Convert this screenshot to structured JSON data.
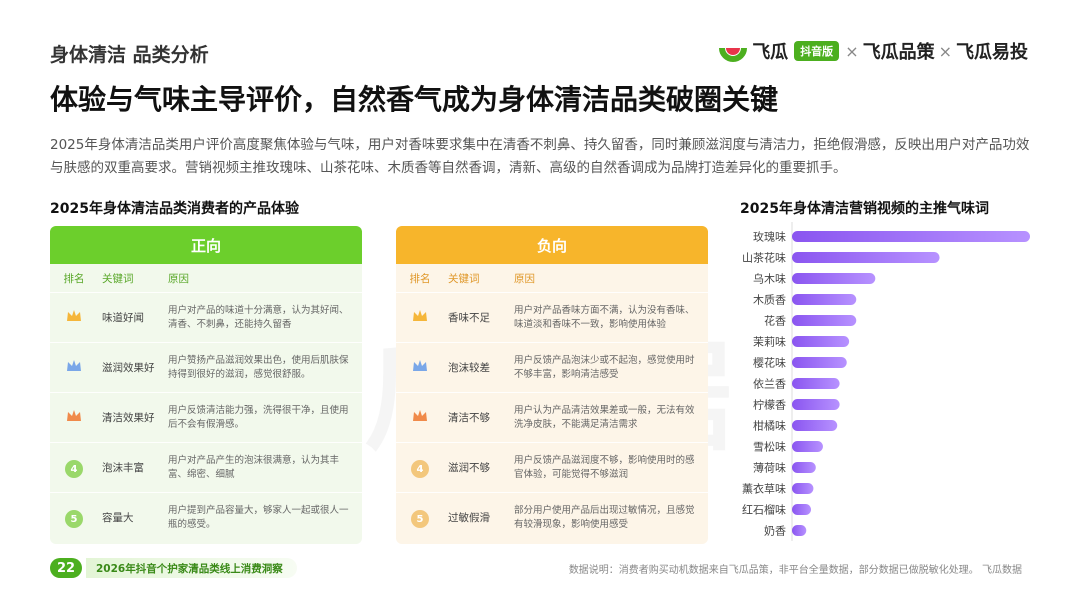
{
  "header": {
    "section_tag": "身体清洁 品类分析",
    "brand": {
      "name1": "飞瓜",
      "pill": "抖音版",
      "x1": "×",
      "name2": "飞瓜品策",
      "x2": "×",
      "name3": "飞瓜易投",
      "accent": "#4caf1f"
    }
  },
  "title": "体验与气味主导评价，自然香气成为身体清洁品类破圈关键",
  "description": "2025年身体清洁品类用户评价高度聚焦体验与气味，用户对香味要求集中在清香不刺鼻、持久留香，同时兼顾滋润度与清洁力，拒绝假滑感，反映出用户对产品功效与肤感的双重高要求。营销视频主推玫瑰味、山茶花味、木质香等自然香调，清新、高级的自然香调成为品牌打造差异化的重要抓手。",
  "left_title": "2025年身体清洁品类消费者的产品体验",
  "right_title": "2025年身体清洁营销视频的主推气味词",
  "columns": {
    "rank": "排名",
    "keyword": "关键词",
    "reason": "原因"
  },
  "positive": {
    "label": "正向",
    "color": "#6ccf2c",
    "rows": [
      {
        "rank": "1",
        "icon": "gold-crown-icon",
        "keyword": "味道好闻",
        "reason": "用户对产品的味道十分满意，认为其好闻、清香、不刺鼻，还能持久留香"
      },
      {
        "rank": "2",
        "icon": "silver-crown-icon",
        "keyword": "滋润效果好",
        "reason": "用户赞扬产品滋润效果出色，使用后肌肤保持得到很好的滋润，感觉很舒服。"
      },
      {
        "rank": "3",
        "icon": "bronze-crown-icon",
        "keyword": "清洁效果好",
        "reason": "用户反馈清洁能力强，洗得很干净，且使用后不会有假滑感。"
      },
      {
        "rank": "4",
        "icon": "",
        "keyword": "泡沫丰富",
        "reason": "用户对产品产生的泡沫很满意，认为其丰富、绵密、细腻"
      },
      {
        "rank": "5",
        "icon": "",
        "keyword": "容量大",
        "reason": "用户提到产品容量大，够家人一起或很人一瓶的感受。"
      }
    ]
  },
  "negative": {
    "label": "负向",
    "color": "#f7b52b",
    "rows": [
      {
        "rank": "1",
        "icon": "gold-crown-icon",
        "keyword": "香味不足",
        "reason": "用户对产品香味方面不满，认为没有香味、味道淡和香味不一致，影响使用体验"
      },
      {
        "rank": "2",
        "icon": "silver-crown-icon",
        "keyword": "泡沫较差",
        "reason": "用户反馈产品泡沫少或不起泡，感觉使用时不够丰富，影响清洁感受"
      },
      {
        "rank": "3",
        "icon": "bronze-crown-icon",
        "keyword": "清洁不够",
        "reason": "用户认为产品清洁效果差或一般，无法有效洗净皮肤，不能满足清洁需求"
      },
      {
        "rank": "4",
        "icon": "",
        "keyword": "滋润不够",
        "reason": "用户反馈产品滋润度不够，影响使用时的感官体验，可能觉得不够滋润"
      },
      {
        "rank": "5",
        "icon": "",
        "keyword": "过敏假滑",
        "reason": "部分用户使用产品后出现过敏情况，且感觉有较滑现象，影响使用感受"
      }
    ]
  },
  "watermark": "飞瓜数据",
  "chart_data": {
    "type": "bar",
    "orientation": "horizontal",
    "title": "2025年身体清洁营销视频的主推气味词",
    "categories": [
      "玫瑰味",
      "山茶花味",
      "乌木味",
      "木质香",
      "花香",
      "茉莉味",
      "樱花味",
      "依兰香",
      "柠檬香",
      "柑橘味",
      "雪松味",
      "薄荷味",
      "薰衣草味",
      "红石榴味",
      "奶香"
    ],
    "values": [
      100,
      62,
      35,
      27,
      27,
      24,
      23,
      20,
      20,
      19,
      13,
      10,
      9,
      8,
      6
    ],
    "unit": "relative",
    "bar_color": "#8a55f0",
    "bar_color_light": "#b792ff",
    "xlabel": "",
    "ylabel": "",
    "grid": false
  },
  "footer": {
    "page": "22",
    "report": "2026年抖音个护家清品类线上消费洞察",
    "note": "数据说明：消费者购买动机数据来自飞瓜品策，非平台全量数据，部分数据已做脱敏化处理。  飞瓜数据"
  }
}
